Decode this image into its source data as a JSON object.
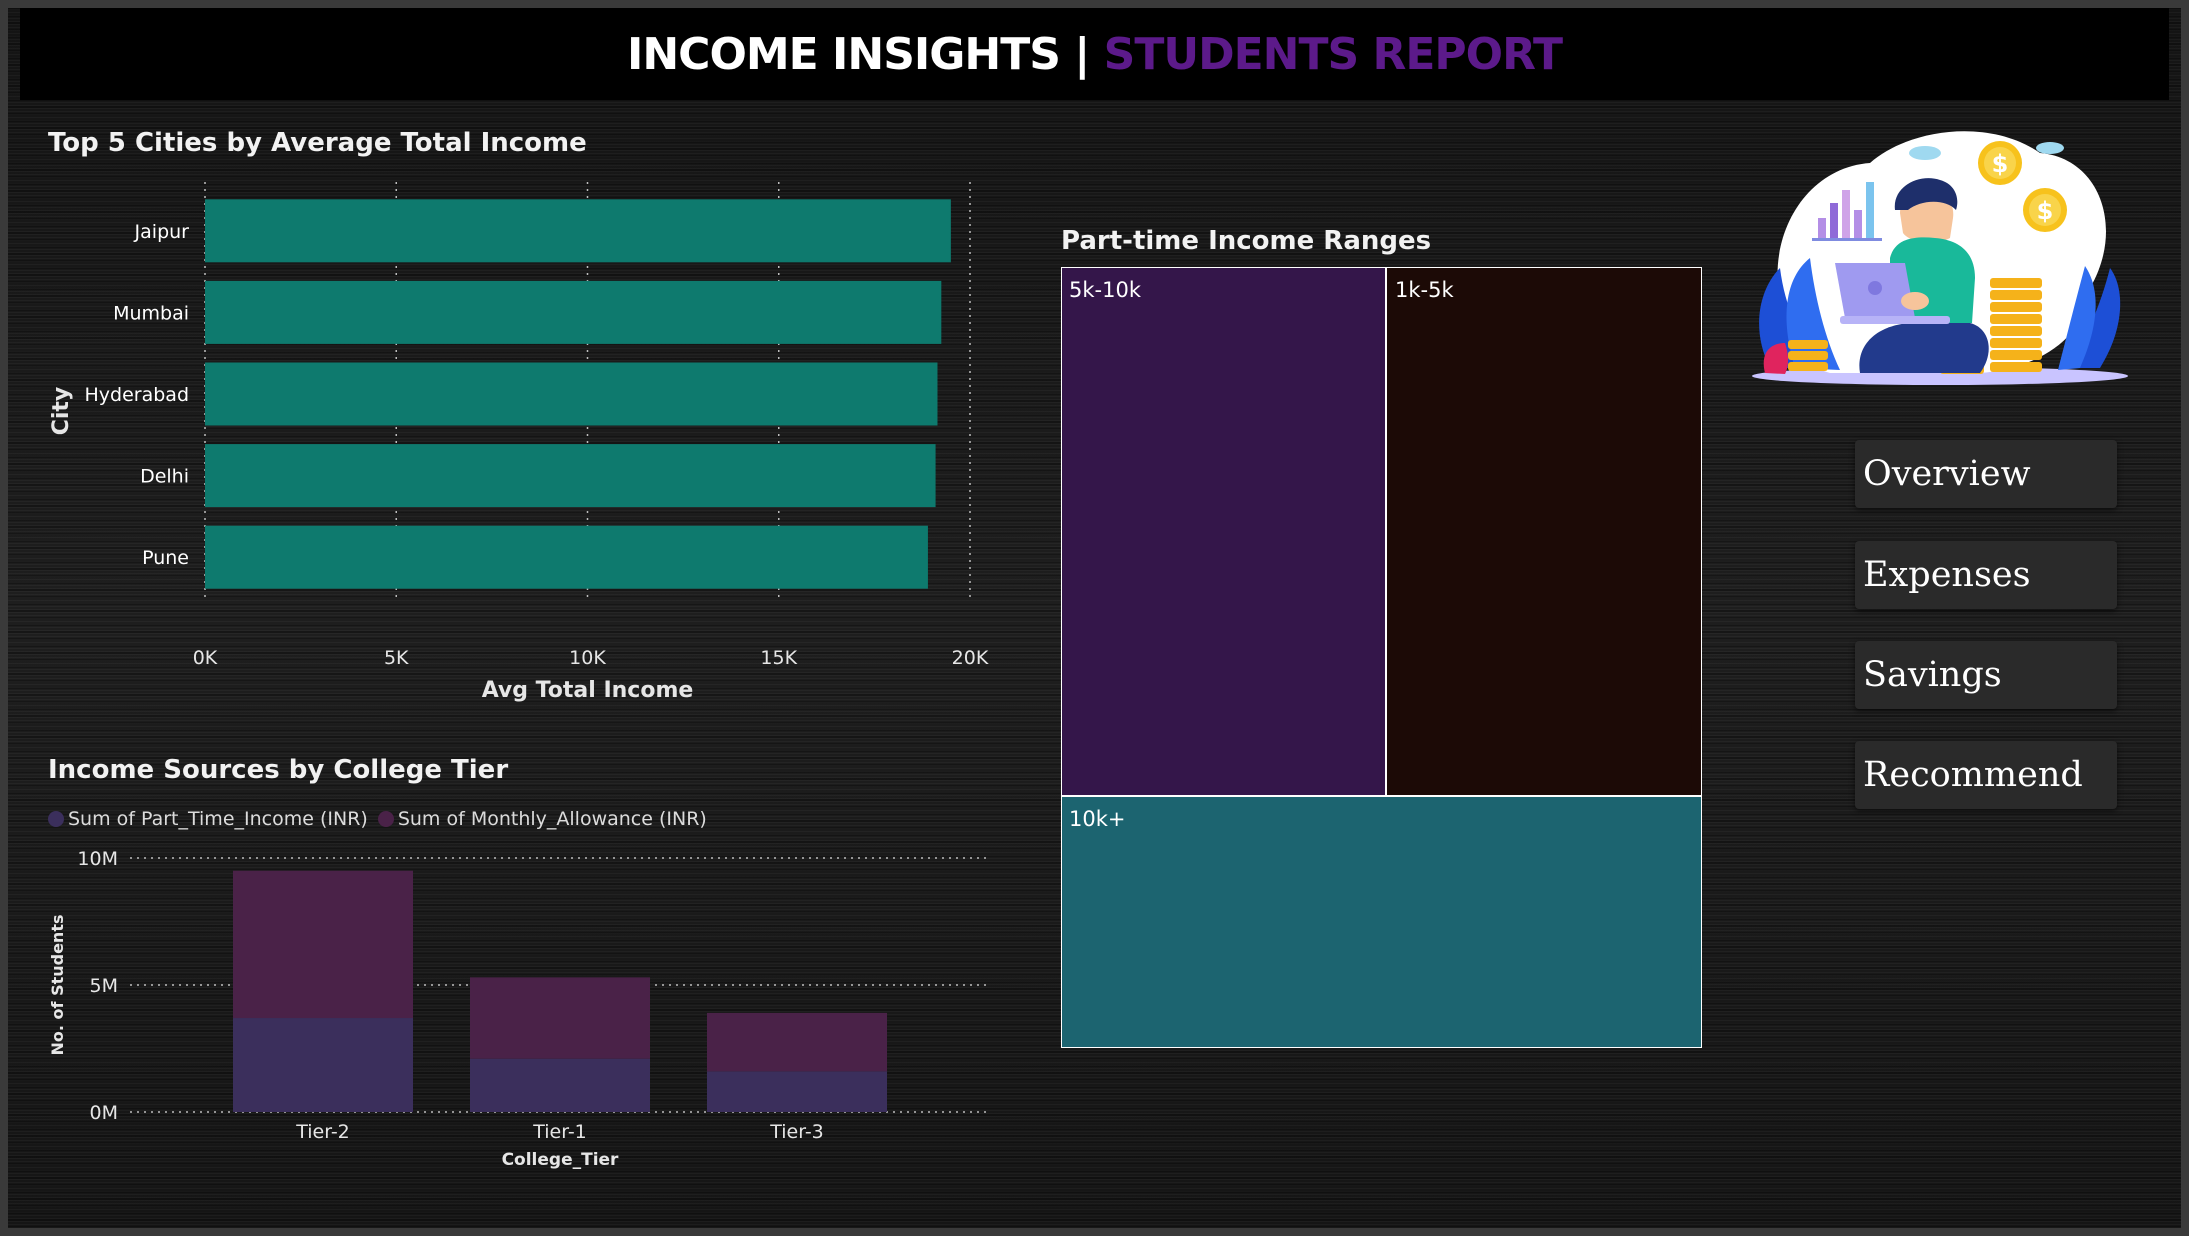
{
  "header": {
    "title_main": "INCOME INSIGHTS | ",
    "title_accent": "STUDENTS REPORT"
  },
  "nav": {
    "items": [
      {
        "label": "Overview"
      },
      {
        "label": "Expenses"
      },
      {
        "label": "Savings"
      },
      {
        "label": "Recommend"
      }
    ]
  },
  "colors": {
    "bar": "#0e7a6e",
    "series_part_time": "#3b2f5c",
    "series_allowance": "#4a2248",
    "treemap_5k_10k": "#34164a",
    "treemap_1k_5k": "#1c0a06",
    "treemap_10k_plus": "#1c6470",
    "accent": "#5c1a8a"
  },
  "chart_data": [
    {
      "type": "bar",
      "orientation": "horizontal",
      "title": "Top 5 Cities by Average Total Income",
      "xlabel": "Avg Total Income",
      "ylabel": "City",
      "categories": [
        "Jaipur",
        "Mumbai",
        "Hyderabad",
        "Delhi",
        "Pune"
      ],
      "values": [
        19500,
        19250,
        19150,
        19100,
        18900
      ],
      "xlim": [
        0,
        20000
      ],
      "xticks": [
        "0K",
        "5K",
        "10K",
        "15K",
        "20K"
      ],
      "grid": "vertical-dotted"
    },
    {
      "type": "treemap",
      "title": "Part-time Income Ranges",
      "categories": [
        "5k-10k",
        "1k-5k",
        "10k+"
      ],
      "values": [
        37,
        33,
        30
      ]
    },
    {
      "type": "bar",
      "stacked": true,
      "title": "Income Sources by College Tier",
      "xlabel": "College_Tier",
      "ylabel": "No. of Students",
      "categories": [
        "Tier-2",
        "Tier-1",
        "Tier-3"
      ],
      "series": [
        {
          "name": "Sum of Part_Time_Income (INR)",
          "values": [
            3700000,
            2100000,
            1600000
          ]
        },
        {
          "name": "Sum of Monthly_Allowance (INR)",
          "values": [
            5800000,
            3200000,
            2300000
          ]
        }
      ],
      "ylim": [
        0,
        10000000
      ],
      "yticks": [
        "0M",
        "5M",
        "10M"
      ],
      "legend": "top-left",
      "grid": "horizontal-dotted"
    }
  ]
}
